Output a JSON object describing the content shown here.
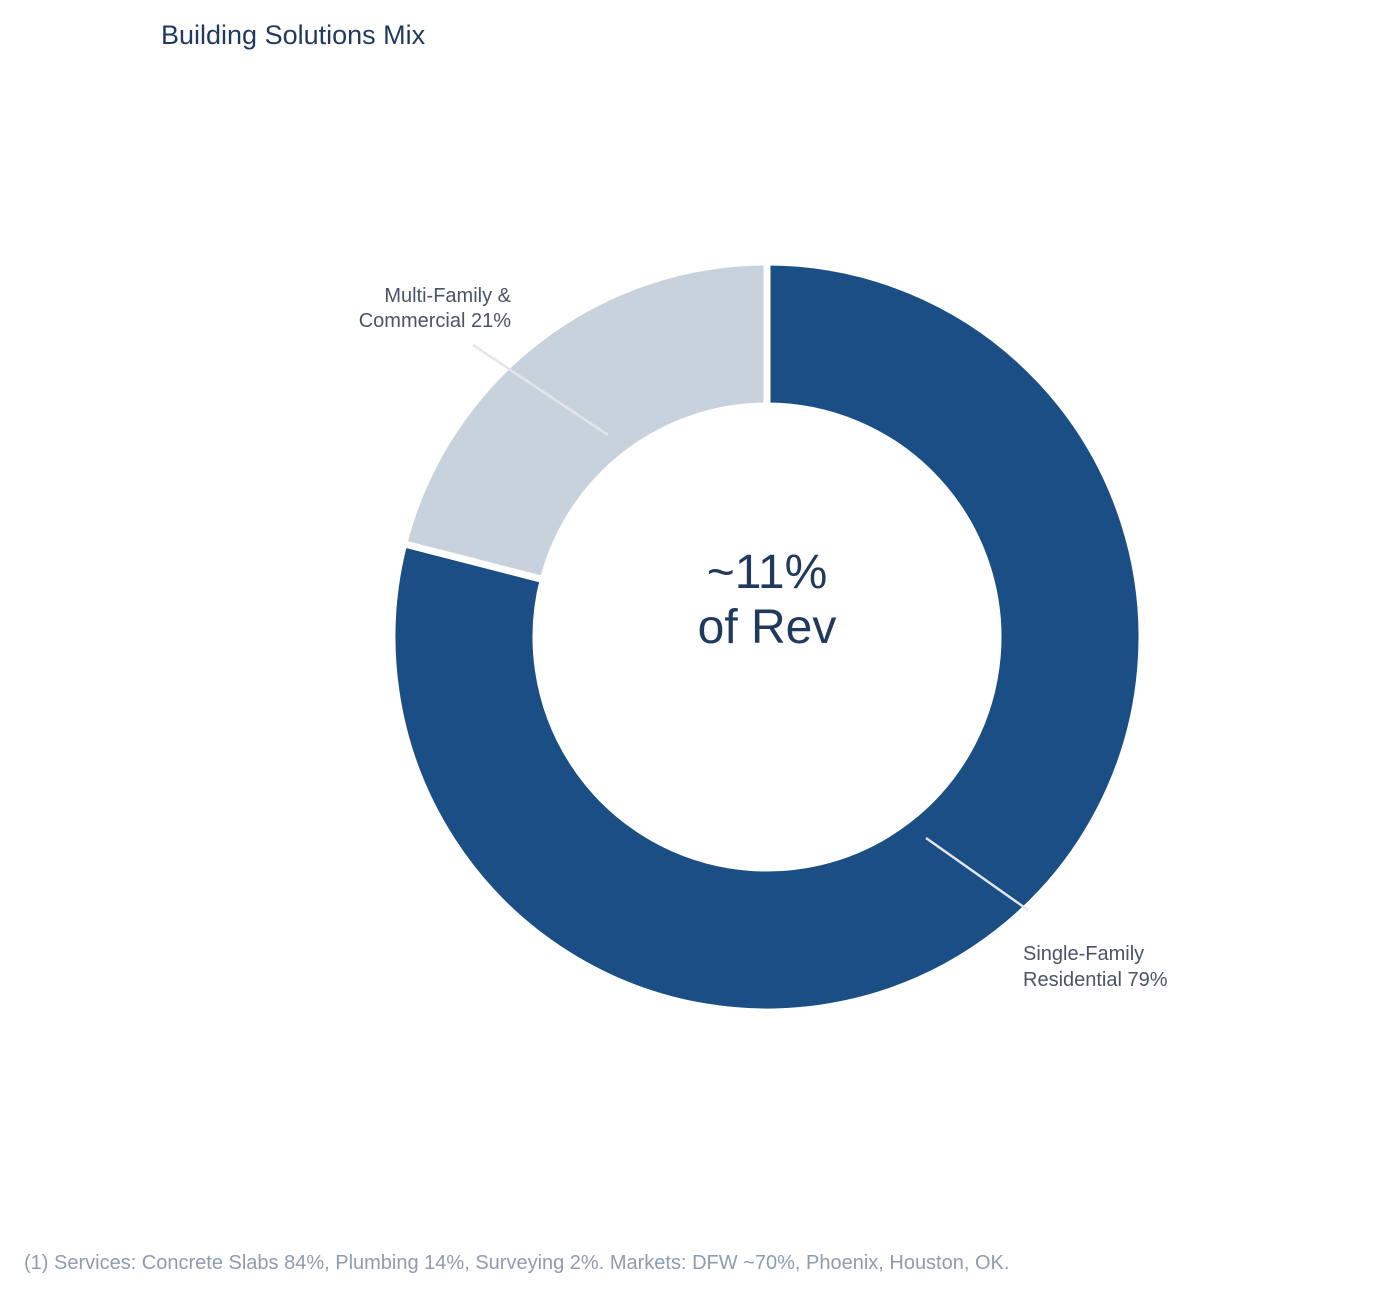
{
  "chart_data": {
    "type": "pie",
    "title": "Building Solutions Mix",
    "donut": true,
    "center_label": [
      "~11%",
      "of Rev"
    ],
    "series": [
      {
        "name": "Single-Family Residential",
        "value": 79,
        "label": [
          "Single-Family",
          "Residential 79%"
        ],
        "color": "#1a4e84"
      },
      {
        "name": "Multi-Family & Commercial",
        "value": 21,
        "label": [
          "Multi-Family &",
          "Commercial 21%"
        ],
        "color": "#c7d2dd"
      }
    ]
  },
  "footnote": "(1) Services: Concrete Slabs 84%, Plumbing 14%, Surveying 2%. Markets: DFW ~70%, Phoenix, Houston, OK."
}
